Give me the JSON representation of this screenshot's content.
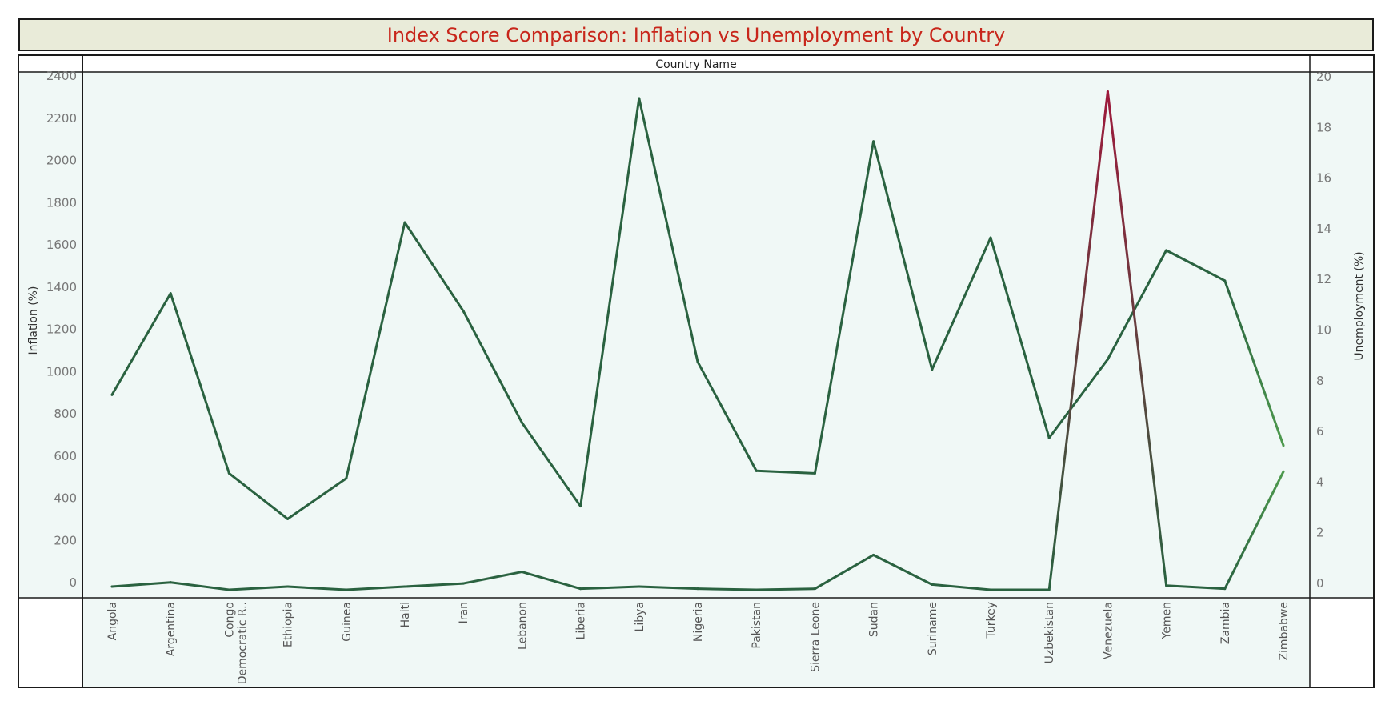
{
  "chart_data": {
    "type": "line",
    "title": "Index Score Comparison: Inflation vs Unemployment by Country",
    "header_label": "Country Name",
    "categories": [
      "Angola",
      "Argentina",
      "Congo, Democratic R..",
      "Ethiopia",
      "Guinea",
      "Haiti",
      "Iran",
      "Lebanon",
      "Liberia",
      "Libya",
      "Nigeria",
      "Pakistan",
      "Sierra Leone",
      "Sudan",
      "Suriname",
      "Turkey",
      "Uzbekistan",
      "Venezuela",
      "Yemen",
      "Zambia",
      "Zimbabwe"
    ],
    "category_lines": [
      [
        "Angola"
      ],
      [
        "Argentina"
      ],
      [
        "Congo",
        "Democratic R.."
      ],
      [
        "Ethiopia"
      ],
      [
        "Guinea"
      ],
      [
        "Haiti"
      ],
      [
        "Iran"
      ],
      [
        "Lebanon"
      ],
      [
        "Liberia"
      ],
      [
        "Libya"
      ],
      [
        "Nigeria"
      ],
      [
        "Pakistan"
      ],
      [
        "Sierra Leone"
      ],
      [
        "Sudan"
      ],
      [
        "Suriname"
      ],
      [
        "Turkey"
      ],
      [
        "Uzbekistan"
      ],
      [
        "Venezuela"
      ],
      [
        "Yemen"
      ],
      [
        "Zambia"
      ],
      [
        "Zimbabwe"
      ]
    ],
    "series": [
      {
        "name": "Inflation",
        "axis": "left",
        "values": [
          15,
          35,
          0,
          15,
          0,
          15,
          30,
          85,
          5,
          15,
          5,
          0,
          5,
          165,
          25,
          0,
          0,
          2360,
          20,
          5,
          560
        ]
      },
      {
        "name": "Unemployment",
        "axis": "right",
        "values": [
          7.7,
          11.7,
          4.6,
          2.8,
          4.4,
          14.5,
          11.0,
          6.6,
          3.3,
          19.4,
          9.0,
          4.7,
          4.6,
          17.7,
          8.7,
          13.9,
          6.0,
          9.1,
          13.4,
          12.2,
          5.7
        ]
      }
    ],
    "left_axis": {
      "label": "Inflation (%)",
      "range": [
        0,
        2400
      ],
      "ticks": [
        0,
        200,
        400,
        600,
        800,
        1000,
        1200,
        1400,
        1600,
        1800,
        2000,
        2200,
        2400
      ]
    },
    "right_axis": {
      "label": "Unemployment (%)",
      "range": [
        0,
        20
      ],
      "ticks": [
        0,
        2,
        4,
        6,
        8,
        10,
        12,
        14,
        16,
        18,
        20
      ]
    },
    "colors": {
      "line_default": "#2a6240",
      "line_peak": "#9e1a3c",
      "line_light": "#4e9a4e",
      "plot_background": "#f0f8f6",
      "title_text": "#c8261b",
      "title_background": "#e9ebd9"
    },
    "grid": false
  }
}
